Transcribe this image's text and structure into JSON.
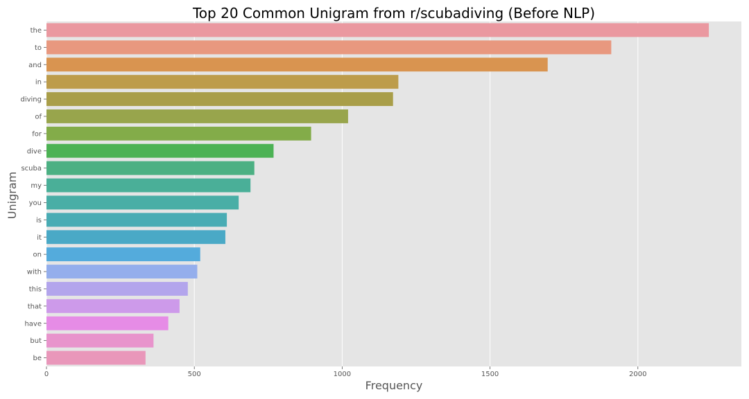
{
  "chart_data": {
    "type": "bar",
    "orientation": "horizontal",
    "title": "Top 20 Common Unigram from r/scubadiving (Before NLP)",
    "xlabel": "Frequency",
    "ylabel": "Unigram",
    "xlim": [
      0,
      2350
    ],
    "xticks": [
      0,
      500,
      1000,
      1500,
      2000
    ],
    "grid": true,
    "background_color": "#e5e5e5",
    "categories": [
      "the",
      "to",
      "and",
      "in",
      "diving",
      "of",
      "for",
      "dive",
      "scuba",
      "my",
      "you",
      "is",
      "it",
      "on",
      "with",
      "this",
      "that",
      "have",
      "but",
      "be"
    ],
    "values": [
      2240,
      1910,
      1695,
      1190,
      1172,
      1020,
      895,
      768,
      703,
      690,
      650,
      610,
      605,
      520,
      510,
      478,
      450,
      412,
      362,
      335
    ],
    "colors": [
      "#ea98a0",
      "#e8987f",
      "#d99450",
      "#bd9c4b",
      "#a99e49",
      "#98a54c",
      "#83ac49",
      "#4cb254",
      "#4cb083",
      "#4aaf98",
      "#49aea6",
      "#49acb4",
      "#4aa9c6",
      "#54abdc",
      "#94aeec",
      "#b3a5ec",
      "#cd9aea",
      "#e68ce6",
      "#e894cc",
      "#e997ba"
    ]
  }
}
